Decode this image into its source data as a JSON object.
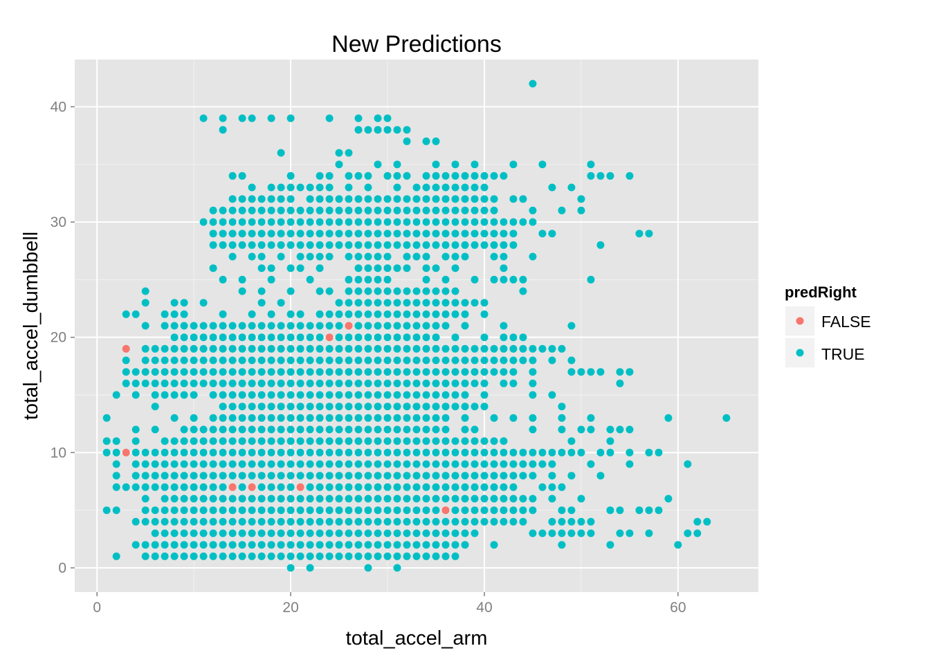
{
  "chart_data": {
    "type": "scatter",
    "title": "New Predictions",
    "xlabel": "total_accel_arm",
    "ylabel": "total_accel_dumbbell",
    "xlim": [
      -2.3,
      68.3
    ],
    "ylim": [
      -2.1,
      44.1
    ],
    "x_ticks": [
      0,
      20,
      40,
      60
    ],
    "y_ticks": [
      0,
      10,
      20,
      30,
      40
    ],
    "grid": true,
    "legend_position": "right",
    "legend": {
      "title": "predRight",
      "entries": [
        {
          "label": "FALSE",
          "color": "#F8766D"
        },
        {
          "label": "TRUE",
          "color": "#00BFC4"
        }
      ]
    },
    "colors": {
      "FALSE": "#F8766D",
      "TRUE": "#00BFC4",
      "panel": "#E5E5E5",
      "grid_major": "#FFFFFF",
      "grid_minor": "#F2F2F2"
    },
    "false_points": [
      [
        3,
        19
      ],
      [
        3,
        10
      ],
      [
        14,
        7
      ],
      [
        16,
        7
      ],
      [
        21,
        7
      ],
      [
        24,
        20
      ],
      [
        26,
        21
      ],
      [
        36,
        5
      ]
    ],
    "true_rows": [
      {
        "y": 42,
        "x": [
          [
            45,
            45
          ]
        ]
      },
      {
        "y": 39,
        "x": [
          [
            11,
            11
          ],
          [
            13,
            13
          ],
          [
            15,
            16
          ],
          [
            18,
            18
          ],
          [
            20,
            20
          ],
          [
            24,
            24
          ],
          [
            27,
            27
          ],
          [
            29,
            30
          ]
        ]
      },
      {
        "y": 38,
        "x": [
          [
            13,
            13
          ],
          [
            27,
            32
          ]
        ]
      },
      {
        "y": 37,
        "x": [
          [
            32,
            32
          ],
          [
            34,
            35
          ]
        ]
      },
      {
        "y": 36,
        "x": [
          [
            19,
            19
          ],
          [
            25,
            26
          ]
        ]
      },
      {
        "y": 35,
        "x": [
          [
            25,
            25
          ],
          [
            29,
            29
          ],
          [
            31,
            31
          ],
          [
            35,
            35
          ],
          [
            37,
            37
          ],
          [
            39,
            39
          ],
          [
            43,
            43
          ],
          [
            46,
            46
          ],
          [
            51,
            51
          ]
        ]
      },
      {
        "y": 34,
        "x": [
          [
            14,
            15
          ],
          [
            20,
            20
          ],
          [
            23,
            24
          ],
          [
            26,
            28
          ],
          [
            30,
            32
          ],
          [
            34,
            42
          ],
          [
            51,
            53
          ],
          [
            55,
            55
          ]
        ]
      },
      {
        "y": 33,
        "x": [
          [
            16,
            16
          ],
          [
            18,
            24
          ],
          [
            26,
            26
          ],
          [
            28,
            28
          ],
          [
            31,
            31
          ],
          [
            33,
            40
          ],
          [
            47,
            47
          ],
          [
            49,
            49
          ]
        ]
      },
      {
        "y": 32,
        "x": [
          [
            14,
            20
          ],
          [
            22,
            41
          ],
          [
            43,
            44
          ],
          [
            50,
            50
          ]
        ]
      },
      {
        "y": 31,
        "x": [
          [
            12,
            41
          ],
          [
            45,
            45
          ],
          [
            48,
            48
          ],
          [
            50,
            50
          ]
        ]
      },
      {
        "y": 30,
        "x": [
          [
            11,
            45
          ]
        ]
      },
      {
        "y": 29,
        "x": [
          [
            12,
            43
          ],
          [
            46,
            47
          ],
          [
            56,
            57
          ]
        ]
      },
      {
        "y": 28,
        "x": [
          [
            12,
            43
          ],
          [
            52,
            52
          ]
        ]
      },
      {
        "y": 27,
        "x": [
          [
            14,
            14
          ],
          [
            16,
            17
          ],
          [
            19,
            19
          ],
          [
            21,
            24
          ],
          [
            26,
            30
          ],
          [
            32,
            34
          ],
          [
            36,
            38
          ],
          [
            41,
            42
          ],
          [
            45,
            45
          ]
        ]
      },
      {
        "y": 26,
        "x": [
          [
            12,
            12
          ],
          [
            17,
            18
          ],
          [
            20,
            21
          ],
          [
            23,
            23
          ],
          [
            27,
            32
          ],
          [
            34,
            35
          ],
          [
            37,
            37
          ],
          [
            42,
            42
          ]
        ]
      },
      {
        "y": 25,
        "x": [
          [
            13,
            13
          ],
          [
            15,
            15
          ],
          [
            18,
            18
          ],
          [
            22,
            22
          ],
          [
            26,
            30
          ],
          [
            34,
            34
          ],
          [
            36,
            36
          ],
          [
            39,
            39
          ],
          [
            41,
            44
          ],
          [
            51,
            51
          ]
        ]
      },
      {
        "y": 24,
        "x": [
          [
            5,
            5
          ],
          [
            15,
            15
          ],
          [
            17,
            17
          ],
          [
            20,
            20
          ],
          [
            23,
            24
          ],
          [
            26,
            37
          ],
          [
            44,
            44
          ]
        ]
      },
      {
        "y": 23,
        "x": [
          [
            5,
            5
          ],
          [
            8,
            9
          ],
          [
            11,
            11
          ],
          [
            17,
            17
          ],
          [
            19,
            19
          ],
          [
            25,
            40
          ]
        ]
      },
      {
        "y": 22,
        "x": [
          [
            3,
            4
          ],
          [
            7,
            9
          ],
          [
            13,
            13
          ],
          [
            16,
            16
          ],
          [
            18,
            18
          ],
          [
            20,
            21
          ],
          [
            23,
            38
          ],
          [
            40,
            40
          ]
        ]
      },
      {
        "y": 21,
        "x": [
          [
            5,
            5
          ],
          [
            7,
            25
          ],
          [
            27,
            36
          ],
          [
            38,
            38
          ],
          [
            42,
            42
          ],
          [
            49,
            49
          ]
        ]
      },
      {
        "y": 20,
        "x": [
          [
            8,
            23
          ],
          [
            25,
            35
          ],
          [
            37,
            37
          ],
          [
            40,
            40
          ],
          [
            42,
            44
          ]
        ]
      },
      {
        "y": 19,
        "x": [
          [
            5,
            48
          ]
        ]
      },
      {
        "y": 18,
        "x": [
          [
            3,
            3
          ],
          [
            5,
            45
          ],
          [
            47,
            47
          ],
          [
            49,
            49
          ]
        ]
      },
      {
        "y": 17,
        "x": [
          [
            3,
            43
          ],
          [
            45,
            45
          ],
          [
            49,
            52
          ],
          [
            54,
            55
          ]
        ]
      },
      {
        "y": 16,
        "x": [
          [
            3,
            40
          ],
          [
            42,
            43
          ],
          [
            45,
            45
          ],
          [
            54,
            54
          ]
        ]
      },
      {
        "y": 15,
        "x": [
          [
            2,
            2
          ],
          [
            4,
            4
          ],
          [
            6,
            10
          ],
          [
            12,
            38
          ],
          [
            40,
            40
          ],
          [
            45,
            45
          ],
          [
            47,
            47
          ]
        ]
      },
      {
        "y": 14,
        "x": [
          [
            6,
            6
          ],
          [
            13,
            40
          ],
          [
            48,
            48
          ]
        ]
      },
      {
        "y": 13,
        "x": [
          [
            1,
            1
          ],
          [
            8,
            8
          ],
          [
            10,
            10
          ],
          [
            12,
            36
          ],
          [
            38,
            38
          ],
          [
            41,
            41
          ],
          [
            43,
            43
          ],
          [
            45,
            45
          ],
          [
            48,
            48
          ],
          [
            51,
            51
          ],
          [
            59,
            59
          ],
          [
            65,
            65
          ]
        ]
      },
      {
        "y": 12,
        "x": [
          [
            4,
            4
          ],
          [
            6,
            6
          ],
          [
            9,
            36
          ],
          [
            38,
            39
          ],
          [
            45,
            45
          ],
          [
            48,
            48
          ],
          [
            50,
            51
          ],
          [
            53,
            55
          ]
        ]
      },
      {
        "y": 11,
        "x": [
          [
            1,
            2
          ],
          [
            4,
            4
          ],
          [
            7,
            42
          ],
          [
            49,
            49
          ],
          [
            53,
            53
          ]
        ]
      },
      {
        "y": 10,
        "x": [
          [
            1,
            2
          ],
          [
            4,
            50
          ],
          [
            52,
            53
          ],
          [
            55,
            55
          ],
          [
            57,
            58
          ]
        ]
      },
      {
        "y": 9,
        "x": [
          [
            2,
            2
          ],
          [
            4,
            47
          ],
          [
            51,
            51
          ],
          [
            55,
            55
          ],
          [
            61,
            61
          ]
        ]
      },
      {
        "y": 8,
        "x": [
          [
            2,
            2
          ],
          [
            4,
            45
          ],
          [
            47,
            47
          ],
          [
            49,
            49
          ],
          [
            52,
            52
          ]
        ]
      },
      {
        "y": 7,
        "x": [
          [
            2,
            13
          ],
          [
            15,
            15
          ],
          [
            17,
            20
          ],
          [
            22,
            43
          ],
          [
            46,
            48
          ]
        ]
      },
      {
        "y": 6,
        "x": [
          [
            5,
            5
          ],
          [
            7,
            45
          ],
          [
            47,
            47
          ],
          [
            50,
            50
          ],
          [
            59,
            59
          ]
        ]
      },
      {
        "y": 5,
        "x": [
          [
            1,
            2
          ],
          [
            5,
            35
          ],
          [
            37,
            45
          ],
          [
            48,
            49
          ],
          [
            53,
            54
          ],
          [
            56,
            58
          ]
        ]
      },
      {
        "y": 4,
        "x": [
          [
            4,
            44
          ],
          [
            47,
            51
          ],
          [
            62,
            63
          ]
        ]
      },
      {
        "y": 3,
        "x": [
          [
            6,
            39
          ],
          [
            45,
            51
          ],
          [
            54,
            55
          ],
          [
            57,
            57
          ],
          [
            61,
            62
          ]
        ]
      },
      {
        "y": 2,
        "x": [
          [
            4,
            38
          ],
          [
            41,
            41
          ],
          [
            48,
            48
          ],
          [
            53,
            53
          ],
          [
            60,
            60
          ]
        ]
      },
      {
        "y": 1,
        "x": [
          [
            2,
            2
          ],
          [
            5,
            37
          ]
        ]
      },
      {
        "y": 0,
        "x": [
          [
            20,
            20
          ],
          [
            22,
            22
          ],
          [
            28,
            28
          ],
          [
            31,
            31
          ]
        ]
      }
    ]
  }
}
